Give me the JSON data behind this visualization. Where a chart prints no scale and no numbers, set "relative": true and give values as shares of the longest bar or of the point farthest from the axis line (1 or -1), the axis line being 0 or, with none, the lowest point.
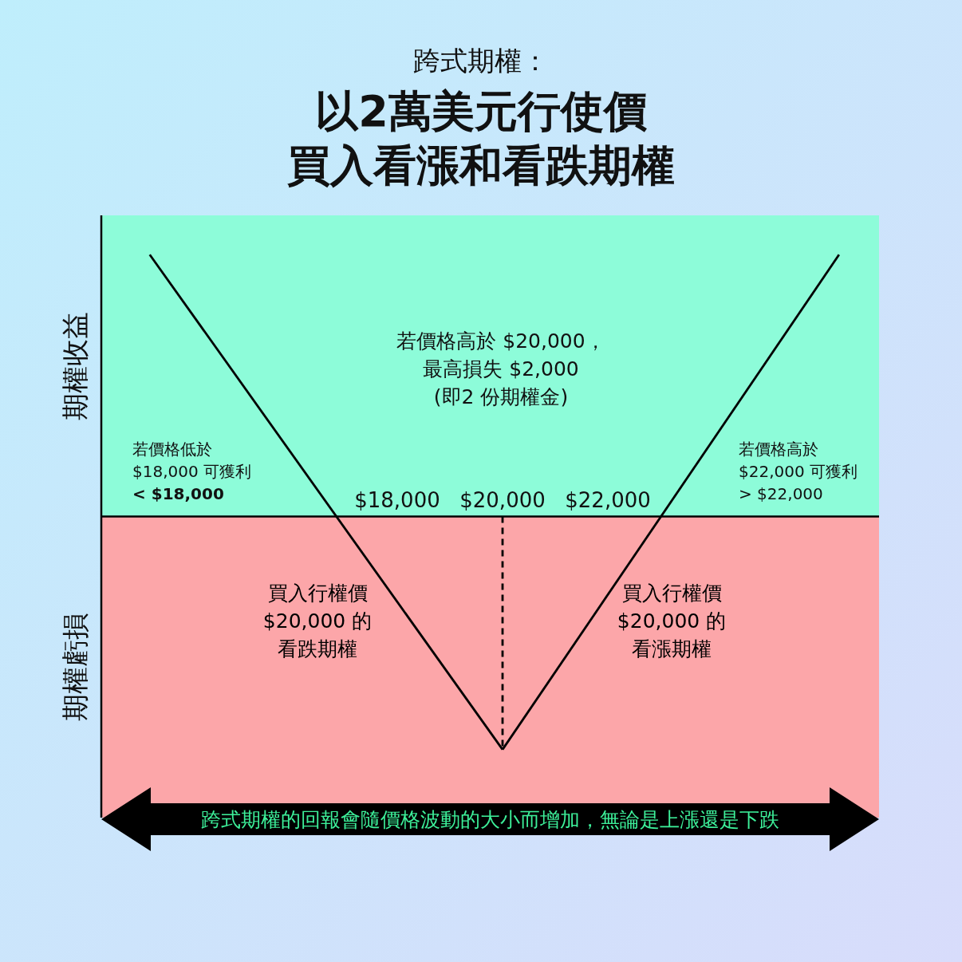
{
  "chart_data": {
    "type": "line",
    "title": "以2萬美元行使價買入看漲和看跌期權",
    "subtitle": "跨式期權：",
    "relative": true,
    "xlim": [
      12380,
      27150
    ],
    "xticks": [
      {
        "value": 18000,
        "label": "$18,000"
      },
      {
        "value": 20000,
        "label": "$20,000"
      },
      {
        "value": 22000,
        "label": "$22,000"
      }
    ],
    "series": [
      {
        "name": "買入行權價$20,000 的看跌期權",
        "color": "#000000",
        "x": [
          13300,
          20000
        ],
        "values": [
          1,
          -0.89
        ]
      },
      {
        "name": "買入行權價$20,000 的看漲期權",
        "color": "#000000",
        "x": [
          20000,
          26390
        ],
        "values": [
          -0.89,
          1
        ]
      },
      {
        "color": "#000000",
        "line_style": "dashed",
        "x": [
          20000,
          20000
        ],
        "values": [
          0,
          -0.89
        ]
      }
    ],
    "bands": [
      {
        "axis": "y",
        "from": 0,
        "to": 1.15,
        "label": "期權收益",
        "color": "#8dfcd9"
      },
      {
        "axis": "y",
        "from": -1.15,
        "to": 0,
        "label": "期權虧損",
        "color": "#fca6a9"
      }
    ],
    "annotations": [
      "若價格高於 $20,000，最高損失 $2,000(即2 份期權金)",
      "若價格低於\n$18,000 可獲利\n**< $18,000**",
      "若價格高於\n$22,000 可獲利\n> $22,000",
      "跨式期權的回報會隨價格波動的大小而增加，無論是上漲還是下跌"
    ],
    "marker": "none",
    "line_style": "solid"
  }
}
